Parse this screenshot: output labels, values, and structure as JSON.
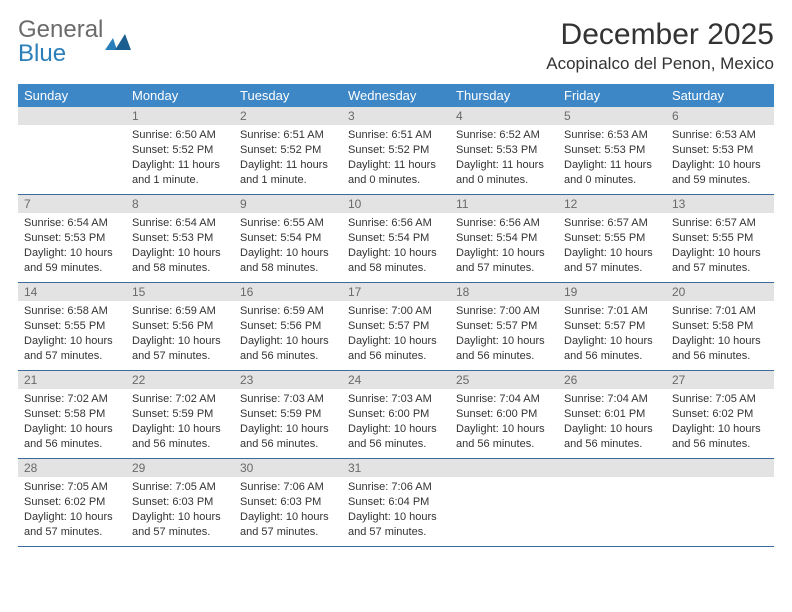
{
  "brand": {
    "general": "General",
    "blue": "Blue"
  },
  "title": "December 2025",
  "location": "Acopinalco del Penon, Mexico",
  "colors": {
    "header_bg": "#3d87c7",
    "header_text": "#ffffff",
    "daynum_bg": "#e3e3e3",
    "daynum_text": "#6a6a6a",
    "row_divider": "#3d6a9a",
    "body_text": "#333333",
    "logo_gray": "#6b6b6b",
    "logo_blue": "#2a7fba"
  },
  "weekdays": [
    "Sunday",
    "Monday",
    "Tuesday",
    "Wednesday",
    "Thursday",
    "Friday",
    "Saturday"
  ],
  "weeks": [
    [
      {
        "empty": true
      },
      {
        "n": "1",
        "sr": "Sunrise: 6:50 AM",
        "ss": "Sunset: 5:52 PM",
        "dl": "Daylight: 11 hours and 1 minute."
      },
      {
        "n": "2",
        "sr": "Sunrise: 6:51 AM",
        "ss": "Sunset: 5:52 PM",
        "dl": "Daylight: 11 hours and 1 minute."
      },
      {
        "n": "3",
        "sr": "Sunrise: 6:51 AM",
        "ss": "Sunset: 5:52 PM",
        "dl": "Daylight: 11 hours and 0 minutes."
      },
      {
        "n": "4",
        "sr": "Sunrise: 6:52 AM",
        "ss": "Sunset: 5:53 PM",
        "dl": "Daylight: 11 hours and 0 minutes."
      },
      {
        "n": "5",
        "sr": "Sunrise: 6:53 AM",
        "ss": "Sunset: 5:53 PM",
        "dl": "Daylight: 11 hours and 0 minutes."
      },
      {
        "n": "6",
        "sr": "Sunrise: 6:53 AM",
        "ss": "Sunset: 5:53 PM",
        "dl": "Daylight: 10 hours and 59 minutes."
      }
    ],
    [
      {
        "n": "7",
        "sr": "Sunrise: 6:54 AM",
        "ss": "Sunset: 5:53 PM",
        "dl": "Daylight: 10 hours and 59 minutes."
      },
      {
        "n": "8",
        "sr": "Sunrise: 6:54 AM",
        "ss": "Sunset: 5:53 PM",
        "dl": "Daylight: 10 hours and 58 minutes."
      },
      {
        "n": "9",
        "sr": "Sunrise: 6:55 AM",
        "ss": "Sunset: 5:54 PM",
        "dl": "Daylight: 10 hours and 58 minutes."
      },
      {
        "n": "10",
        "sr": "Sunrise: 6:56 AM",
        "ss": "Sunset: 5:54 PM",
        "dl": "Daylight: 10 hours and 58 minutes."
      },
      {
        "n": "11",
        "sr": "Sunrise: 6:56 AM",
        "ss": "Sunset: 5:54 PM",
        "dl": "Daylight: 10 hours and 57 minutes."
      },
      {
        "n": "12",
        "sr": "Sunrise: 6:57 AM",
        "ss": "Sunset: 5:55 PM",
        "dl": "Daylight: 10 hours and 57 minutes."
      },
      {
        "n": "13",
        "sr": "Sunrise: 6:57 AM",
        "ss": "Sunset: 5:55 PM",
        "dl": "Daylight: 10 hours and 57 minutes."
      }
    ],
    [
      {
        "n": "14",
        "sr": "Sunrise: 6:58 AM",
        "ss": "Sunset: 5:55 PM",
        "dl": "Daylight: 10 hours and 57 minutes."
      },
      {
        "n": "15",
        "sr": "Sunrise: 6:59 AM",
        "ss": "Sunset: 5:56 PM",
        "dl": "Daylight: 10 hours and 57 minutes."
      },
      {
        "n": "16",
        "sr": "Sunrise: 6:59 AM",
        "ss": "Sunset: 5:56 PM",
        "dl": "Daylight: 10 hours and 56 minutes."
      },
      {
        "n": "17",
        "sr": "Sunrise: 7:00 AM",
        "ss": "Sunset: 5:57 PM",
        "dl": "Daylight: 10 hours and 56 minutes."
      },
      {
        "n": "18",
        "sr": "Sunrise: 7:00 AM",
        "ss": "Sunset: 5:57 PM",
        "dl": "Daylight: 10 hours and 56 minutes."
      },
      {
        "n": "19",
        "sr": "Sunrise: 7:01 AM",
        "ss": "Sunset: 5:57 PM",
        "dl": "Daylight: 10 hours and 56 minutes."
      },
      {
        "n": "20",
        "sr": "Sunrise: 7:01 AM",
        "ss": "Sunset: 5:58 PM",
        "dl": "Daylight: 10 hours and 56 minutes."
      }
    ],
    [
      {
        "n": "21",
        "sr": "Sunrise: 7:02 AM",
        "ss": "Sunset: 5:58 PM",
        "dl": "Daylight: 10 hours and 56 minutes."
      },
      {
        "n": "22",
        "sr": "Sunrise: 7:02 AM",
        "ss": "Sunset: 5:59 PM",
        "dl": "Daylight: 10 hours and 56 minutes."
      },
      {
        "n": "23",
        "sr": "Sunrise: 7:03 AM",
        "ss": "Sunset: 5:59 PM",
        "dl": "Daylight: 10 hours and 56 minutes."
      },
      {
        "n": "24",
        "sr": "Sunrise: 7:03 AM",
        "ss": "Sunset: 6:00 PM",
        "dl": "Daylight: 10 hours and 56 minutes."
      },
      {
        "n": "25",
        "sr": "Sunrise: 7:04 AM",
        "ss": "Sunset: 6:00 PM",
        "dl": "Daylight: 10 hours and 56 minutes."
      },
      {
        "n": "26",
        "sr": "Sunrise: 7:04 AM",
        "ss": "Sunset: 6:01 PM",
        "dl": "Daylight: 10 hours and 56 minutes."
      },
      {
        "n": "27",
        "sr": "Sunrise: 7:05 AM",
        "ss": "Sunset: 6:02 PM",
        "dl": "Daylight: 10 hours and 56 minutes."
      }
    ],
    [
      {
        "n": "28",
        "sr": "Sunrise: 7:05 AM",
        "ss": "Sunset: 6:02 PM",
        "dl": "Daylight: 10 hours and 57 minutes."
      },
      {
        "n": "29",
        "sr": "Sunrise: 7:05 AM",
        "ss": "Sunset: 6:03 PM",
        "dl": "Daylight: 10 hours and 57 minutes."
      },
      {
        "n": "30",
        "sr": "Sunrise: 7:06 AM",
        "ss": "Sunset: 6:03 PM",
        "dl": "Daylight: 10 hours and 57 minutes."
      },
      {
        "n": "31",
        "sr": "Sunrise: 7:06 AM",
        "ss": "Sunset: 6:04 PM",
        "dl": "Daylight: 10 hours and 57 minutes."
      },
      {
        "empty": true
      },
      {
        "empty": true
      },
      {
        "empty": true
      }
    ]
  ]
}
